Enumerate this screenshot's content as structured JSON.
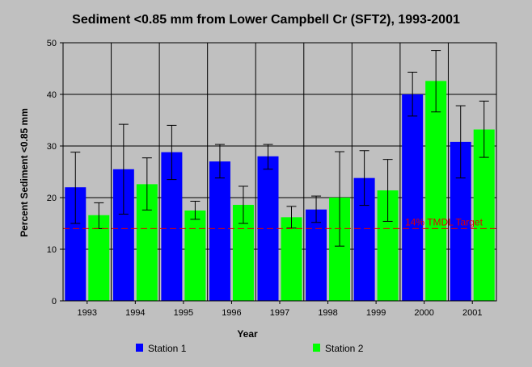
{
  "chart_data": {
    "type": "bar",
    "title": "Sediment <0.85 mm from Lower Campbell Cr (SFT2), 1993-2001",
    "xlabel": "Year",
    "ylabel": "Percent Sediment <0.85 mm",
    "ylim": [
      0,
      50
    ],
    "yticks": [
      0,
      10,
      20,
      30,
      40,
      50
    ],
    "grid": true,
    "legend_position": "bottom",
    "categories": [
      "1993",
      "1994",
      "1995",
      "1996",
      "1997",
      "1998",
      "1999",
      "2000",
      "2001"
    ],
    "series": [
      {
        "name": "Station 1",
        "color": "#0000ff",
        "values": [
          22,
          25.5,
          28.8,
          27,
          28,
          17.7,
          23.8,
          40,
          30.8
        ],
        "err_low": [
          15,
          16.8,
          23.5,
          23.8,
          25.5,
          15.2,
          18.5,
          35.8,
          23.8
        ],
        "err_high": [
          28.8,
          34.2,
          34,
          30.3,
          30.3,
          20.3,
          29.1,
          44.3,
          37.8
        ]
      },
      {
        "name": "Station 2",
        "color": "#00ff00",
        "values": [
          16.6,
          22.6,
          17.5,
          18.6,
          16.2,
          20,
          21.4,
          42.6,
          33.2
        ],
        "err_low": [
          14,
          17.6,
          15.8,
          15,
          14.1,
          10.6,
          15.4,
          36.6,
          27.8
        ],
        "err_high": [
          19,
          27.7,
          19.3,
          22.2,
          18.3,
          28.9,
          27.4,
          48.5,
          38.7
        ]
      }
    ],
    "reference_line": {
      "value": 14,
      "label": "14% TMDL Target",
      "color": "#e00000"
    }
  }
}
